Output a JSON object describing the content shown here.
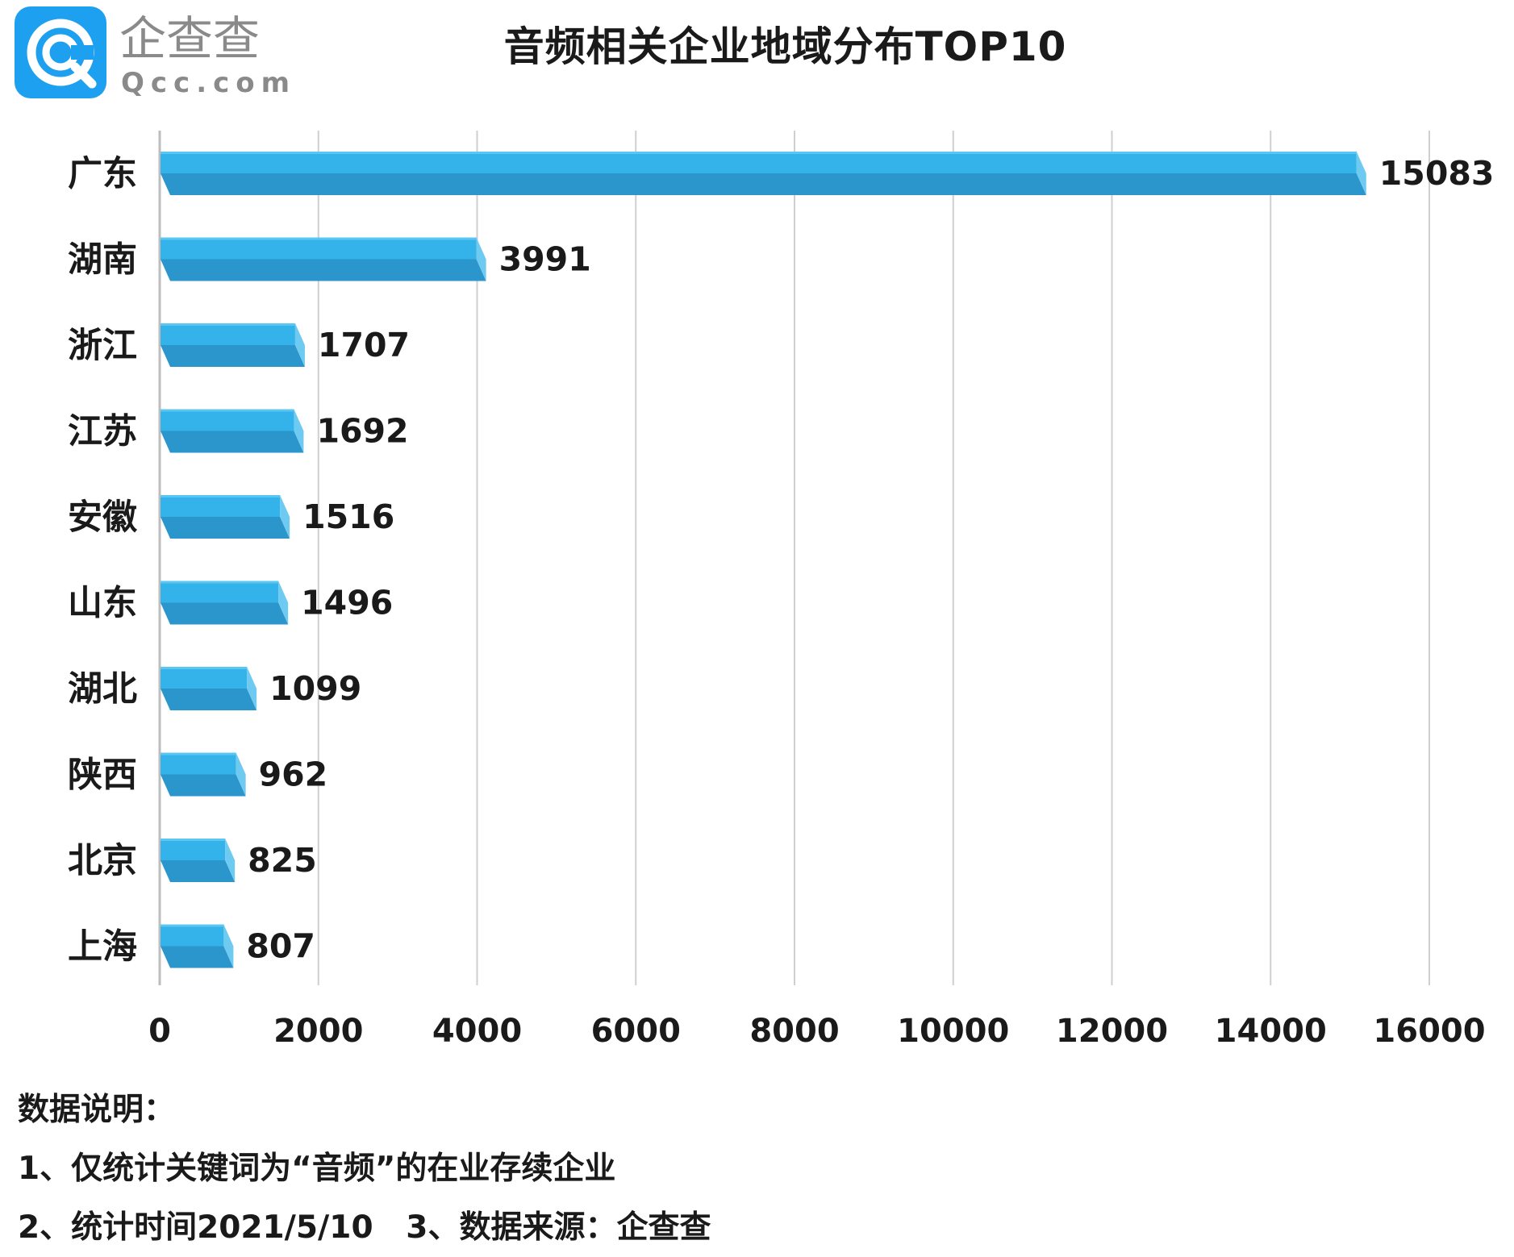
{
  "logo": {
    "brand_cn": "企查查",
    "brand_en": "Qcc.com"
  },
  "chart_data": {
    "type": "bar",
    "orientation": "horizontal",
    "title": "音频相关企业地域分布TOP10",
    "categories": [
      "广东",
      "湖南",
      "浙江",
      "江苏",
      "安徽",
      "山东",
      "湖北",
      "陕西",
      "北京",
      "上海"
    ],
    "values": [
      15083,
      3991,
      1707,
      1692,
      1516,
      1496,
      1099,
      962,
      825,
      807
    ],
    "value_labels": [
      "15083",
      "3991",
      "1707",
      "1692",
      "1516",
      "1496",
      "1099",
      "962",
      "825",
      "807"
    ],
    "xlim": [
      0,
      16000
    ],
    "xticks": [
      0,
      2000,
      4000,
      6000,
      8000,
      10000,
      12000,
      14000,
      16000
    ],
    "xtick_labels": [
      "0",
      "2000",
      "4000",
      "6000",
      "8000",
      "10000",
      "12000",
      "14000",
      "16000"
    ],
    "grid": "vertical",
    "legend": "none",
    "colors": {
      "bar_top": "#33b3ea",
      "bar_front": "#2b96cc",
      "bar_side": "#6fcaf1",
      "grid": "#cfcfcf",
      "axis": "#bdbdbd"
    }
  },
  "notes": {
    "heading": "数据说明：",
    "line1": "1、仅统计关键词为“音频”的在业存续企业",
    "line2": "2、统计时间2021/5/10   3、数据来源：企查查"
  }
}
